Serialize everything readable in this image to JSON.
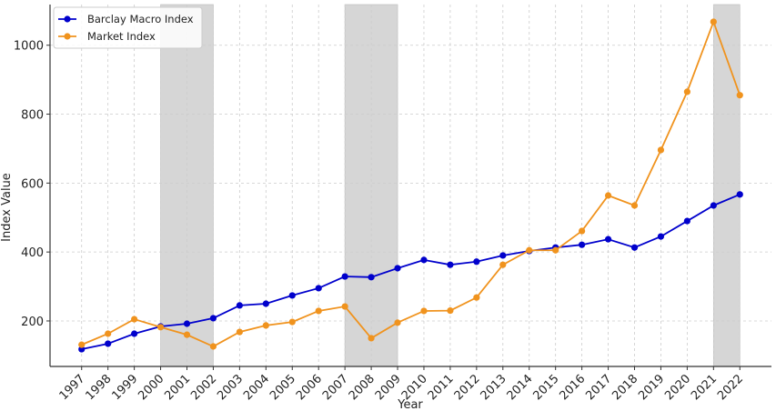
{
  "chart_data": {
    "type": "line",
    "xlabel": "Year",
    "ylabel": "Index Value",
    "x": [
      1997,
      1998,
      1999,
      2000,
      2001,
      2002,
      2003,
      2004,
      2005,
      2006,
      2007,
      2008,
      2009,
      2010,
      2011,
      2012,
      2013,
      2014,
      2015,
      2016,
      2017,
      2018,
      2019,
      2020,
      2021,
      2022
    ],
    "xlim": [
      1995.8,
      2023.2
    ],
    "ylim": [
      68,
      1118
    ],
    "yticks": [
      200,
      400,
      600,
      800,
      1000
    ],
    "grid": true,
    "legend_position": "top-left",
    "shaded_periods": [
      [
        2000,
        2002
      ],
      [
        2007,
        2009
      ],
      [
        2021,
        2022
      ]
    ],
    "series": [
      {
        "name": "Barclay Macro Index",
        "color": "#0000cc",
        "values": [
          118,
          134,
          163,
          184,
          192,
          208,
          245,
          250,
          274,
          295,
          329,
          327,
          353,
          377,
          363,
          372,
          390,
          403,
          413,
          421,
          437,
          413,
          445,
          490,
          535,
          567
        ]
      },
      {
        "name": "Market Index",
        "color": "#f0931e",
        "values": [
          131,
          163,
          205,
          182,
          160,
          126,
          168,
          187,
          197,
          229,
          242,
          150,
          195,
          229,
          230,
          268,
          363,
          405,
          405,
          461,
          564,
          535,
          696,
          865,
          1068,
          855
        ]
      }
    ]
  }
}
